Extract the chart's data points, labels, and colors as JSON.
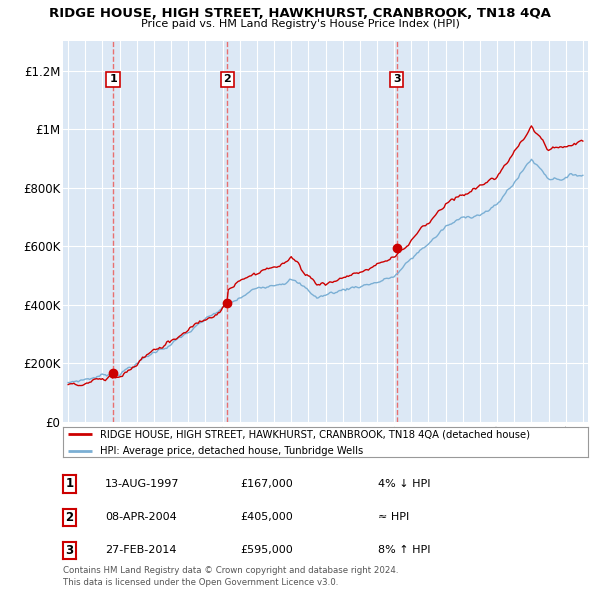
{
  "title": "RIDGE HOUSE, HIGH STREET, HAWKHURST, CRANBROOK, TN18 4QA",
  "subtitle": "Price paid vs. HM Land Registry's House Price Index (HPI)",
  "ylim": [
    0,
    1300000
  ],
  "yticks": [
    0,
    200000,
    400000,
    600000,
    800000,
    1000000,
    1200000
  ],
  "ytick_labels": [
    "£0",
    "£200K",
    "£400K",
    "£600K",
    "£800K",
    "£1M",
    "£1.2M"
  ],
  "sales": [
    {
      "date_num": 1997.62,
      "price": 167000,
      "label": "1"
    },
    {
      "date_num": 2004.27,
      "price": 405000,
      "label": "2"
    },
    {
      "date_num": 2014.16,
      "price": 595000,
      "label": "3"
    }
  ],
  "sale_table": [
    {
      "num": "1",
      "date": "13-AUG-1997",
      "price": "£167,000",
      "hpi": "4% ↓ HPI"
    },
    {
      "num": "2",
      "date": "08-APR-2004",
      "price": "£405,000",
      "hpi": "≈ HPI"
    },
    {
      "num": "3",
      "date": "27-FEB-2014",
      "price": "£595,000",
      "hpi": "8% ↑ HPI"
    }
  ],
  "legend_line1": "RIDGE HOUSE, HIGH STREET, HAWKHURST, CRANBROOK, TN18 4QA (detached house)",
  "legend_line2": "HPI: Average price, detached house, Tunbridge Wells",
  "footer": "Contains HM Land Registry data © Crown copyright and database right 2024.\nThis data is licensed under the Open Government Licence v3.0.",
  "line_color_red": "#cc0000",
  "line_color_blue": "#7bafd4",
  "bg_color": "#dce8f5",
  "grid_color": "#ffffff",
  "vline_color": "#e87070"
}
